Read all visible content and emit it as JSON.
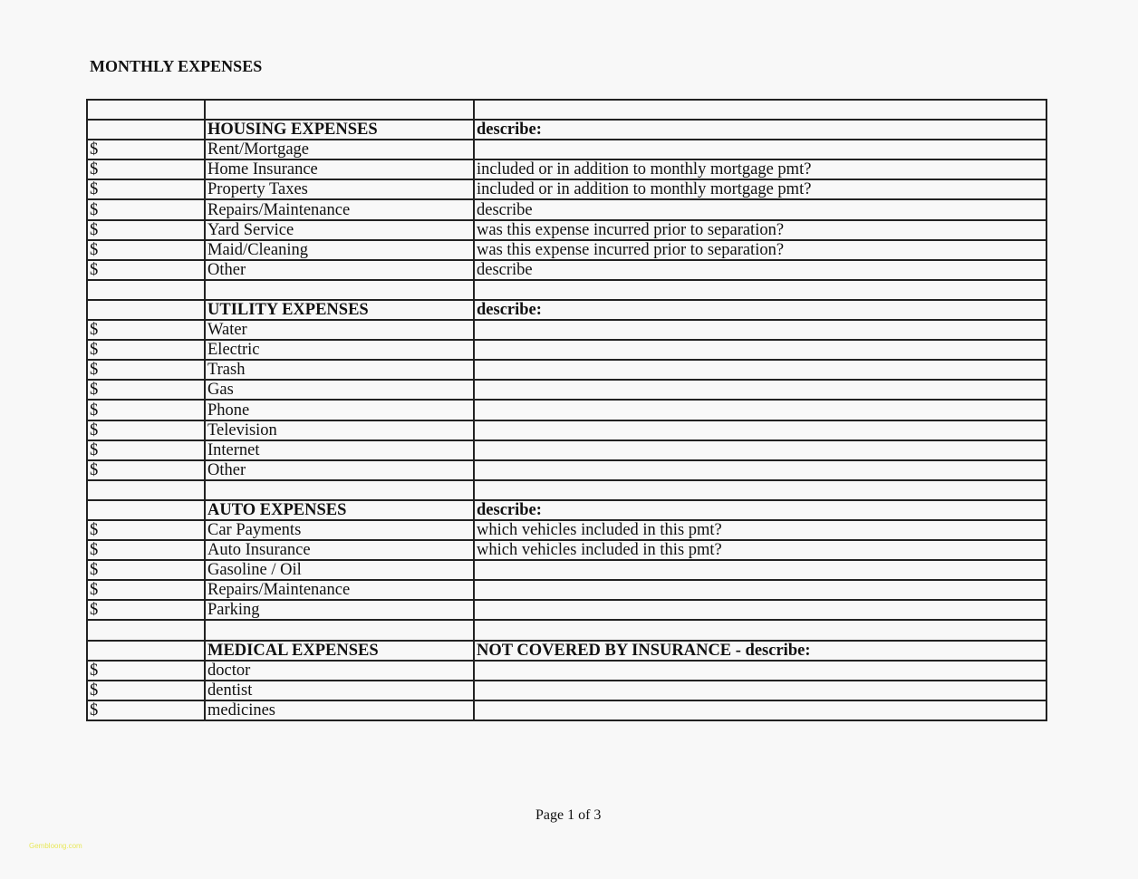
{
  "title": "MONTHLY EXPENSES",
  "footer": {
    "page": "Page 1 of 3"
  },
  "watermark": "Gembloong.com",
  "rows": [
    [
      "",
      "",
      "",
      false
    ],
    [
      "",
      "HOUSING EXPENSES",
      "describe:",
      true
    ],
    [
      "$",
      "Rent/Mortgage",
      "",
      false
    ],
    [
      "$",
      "Home Insurance",
      "included or in addition to monthly mortgage pmt?",
      false
    ],
    [
      "$",
      "Property Taxes",
      "included or in addition to monthly mortgage pmt?",
      false
    ],
    [
      "$",
      "Repairs/Maintenance",
      "describe",
      false
    ],
    [
      "$",
      "Yard Service",
      "was this expense incurred prior to separation?",
      false
    ],
    [
      "$",
      "Maid/Cleaning",
      "was this expense incurred prior to separation?",
      false
    ],
    [
      "$",
      "Other",
      "describe",
      false
    ],
    [
      "",
      "",
      "",
      false
    ],
    [
      "",
      "UTILITY EXPENSES",
      "describe:",
      true
    ],
    [
      "$",
      "Water",
      "",
      false
    ],
    [
      "$",
      "Electric",
      "",
      false
    ],
    [
      "$",
      "Trash",
      "",
      false
    ],
    [
      "$",
      "Gas",
      "",
      false
    ],
    [
      "$",
      "Phone",
      "",
      false
    ],
    [
      "$",
      "Television",
      "",
      false
    ],
    [
      "$",
      "Internet",
      "",
      false
    ],
    [
      "$",
      "Other",
      "",
      false
    ],
    [
      "",
      "",
      "",
      false
    ],
    [
      "",
      "AUTO EXPENSES",
      "describe:",
      true
    ],
    [
      "$",
      "Car Payments",
      "which vehicles included in this pmt?",
      false
    ],
    [
      "$",
      "Auto Insurance",
      "which vehicles included in this pmt?",
      false
    ],
    [
      "$",
      "Gasoline / Oil",
      "",
      false
    ],
    [
      "$",
      "Repairs/Maintenance",
      "",
      false
    ],
    [
      "$",
      "Parking",
      "",
      false
    ],
    [
      "",
      "",
      "",
      false
    ],
    [
      "",
      "MEDICAL EXPENSES",
      "NOT COVERED BY INSURANCE - describe:",
      true
    ],
    [
      "$",
      "doctor",
      "",
      false
    ],
    [
      "$",
      "dentist",
      "",
      false
    ],
    [
      "$",
      "medicines",
      "",
      false
    ]
  ]
}
